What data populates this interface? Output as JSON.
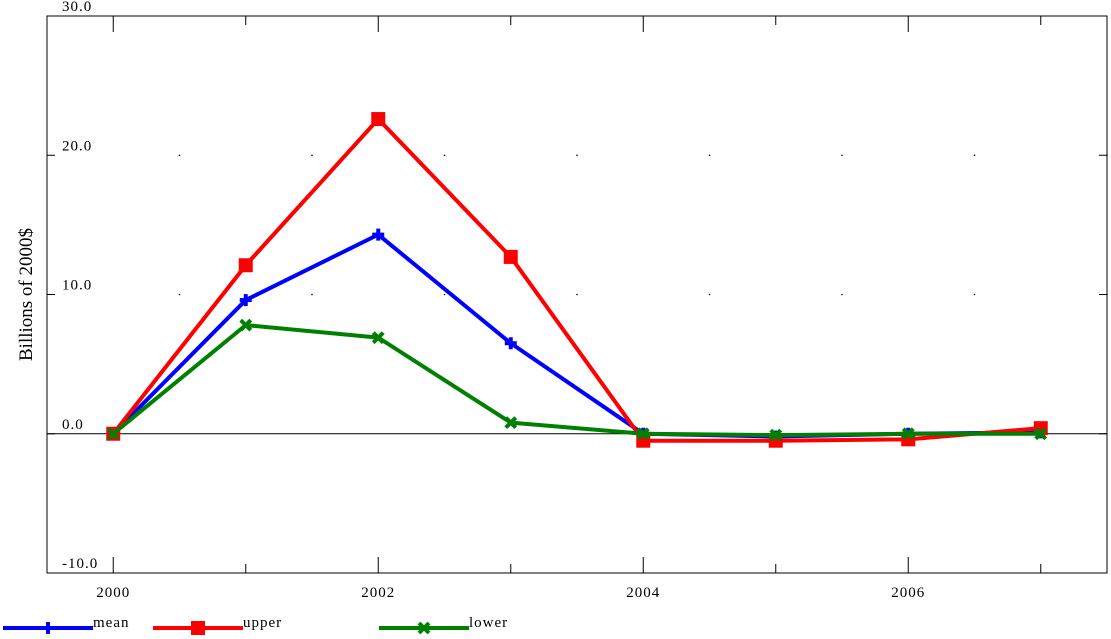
{
  "chart_data": {
    "type": "line",
    "title": "",
    "xlabel": "",
    "ylabel": "Billions of 2000$",
    "x": [
      2000,
      2001,
      2002,
      2003,
      2004,
      2005,
      2006,
      2007
    ],
    "xlim": [
      1999.5,
      2007.5
    ],
    "x_tick_labels": [
      "2000",
      "2002",
      "2004",
      "2006"
    ],
    "x_tick_values": [
      2000,
      2002,
      2004,
      2006
    ],
    "ylim": [
      -10.0,
      30.0
    ],
    "y_tick_labels": [
      "-10.0",
      "0.0",
      "10.0",
      "20.0",
      "30.0"
    ],
    "y_tick_values": [
      -10,
      0,
      10,
      20,
      30
    ],
    "zero_line": true,
    "legend_position": "bottom-left",
    "series": [
      {
        "name": "mean",
        "color": "#0000ff",
        "marker": "plus",
        "values": [
          0.0,
          9.6,
          14.3,
          6.5,
          0.0,
          -0.2,
          0.0,
          0.1
        ]
      },
      {
        "name": "upper",
        "color": "#ff0000",
        "marker": "square",
        "values": [
          0.0,
          12.1,
          22.6,
          12.7,
          -0.5,
          -0.5,
          -0.4,
          0.4
        ]
      },
      {
        "name": "lower",
        "color": "#008000",
        "marker": "cross",
        "values": [
          0.0,
          7.8,
          6.9,
          0.8,
          0.0,
          -0.1,
          0.0,
          0.0
        ]
      }
    ]
  }
}
